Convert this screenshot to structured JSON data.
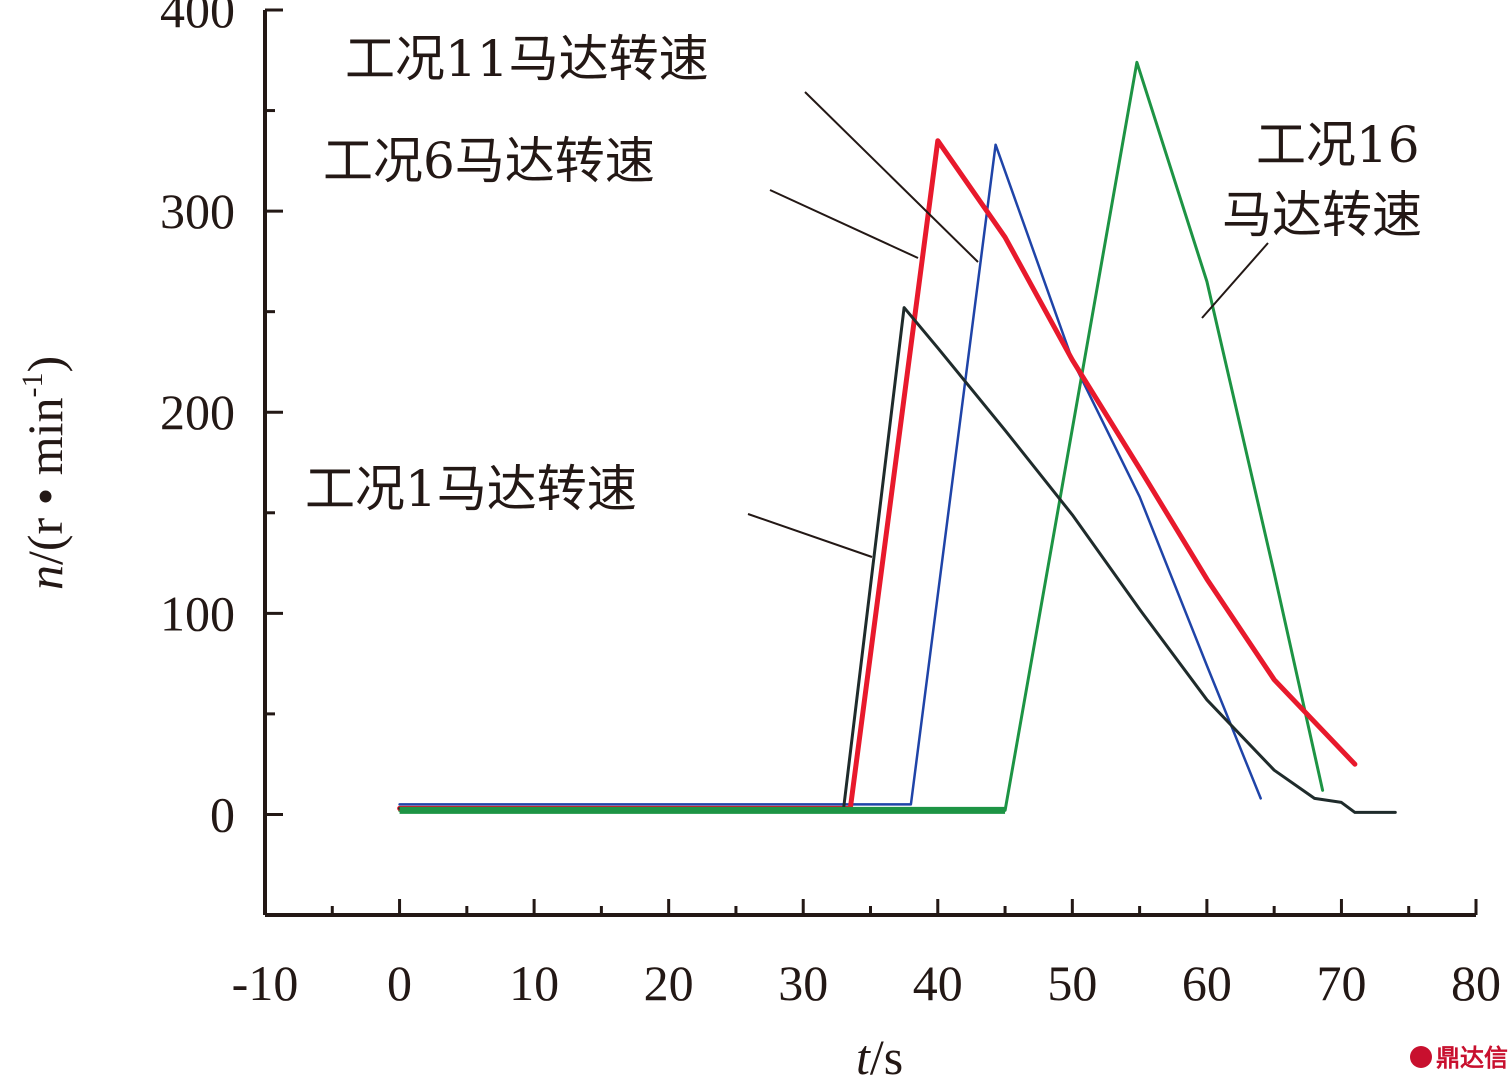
{
  "chart_data": {
    "type": "line",
    "title": "",
    "xlabel": "t/s",
    "ylabel": "n/(r • min-1)",
    "xlim": [
      -10,
      80
    ],
    "ylim": [
      -50,
      400
    ],
    "x_ticks": [
      "-10",
      "0",
      "10",
      "20",
      "30",
      "40",
      "50",
      "60",
      "70",
      "80"
    ],
    "y_ticks": [
      "400",
      "300",
      "200",
      "100",
      "0"
    ],
    "grid": false,
    "series": [
      {
        "name": "工况1马达转速",
        "color": "#1f2b2b",
        "x": [
          0,
          33,
          37.5,
          40,
          45,
          50,
          55,
          60,
          65,
          68,
          70,
          71,
          74
        ],
        "y": [
          3,
          3,
          252,
          232,
          191,
          149,
          102,
          57,
          22,
          8,
          6,
          1,
          1
        ]
      },
      {
        "name": "工况6马达转速",
        "color": "#e8192c",
        "x": [
          0,
          33.5,
          40,
          45,
          50,
          55,
          60,
          65,
          71
        ],
        "y": [
          3,
          3,
          335,
          287,
          226,
          172,
          117,
          67,
          25
        ]
      },
      {
        "name": "工况11马达转速",
        "color": "#1f44a8",
        "x": [
          0,
          38,
          44.3,
          50,
          55,
          60,
          64
        ],
        "y": [
          5,
          5,
          333,
          226,
          158,
          74,
          8
        ]
      },
      {
        "name": "工况16马达转速",
        "color": "#1d9444",
        "x": [
          0,
          45,
          54.8,
          60,
          65,
          68.6
        ],
        "y": [
          2,
          2,
          374,
          265,
          120,
          12
        ]
      }
    ],
    "annotations": [
      {
        "text": "工况11马达转速",
        "series": "工况11马达转速"
      },
      {
        "text": "工况6马达转速",
        "series": "工况6马达转速"
      },
      {
        "text": "工况16",
        "series": "工况16马达转速"
      },
      {
        "text": "马达转速",
        "series": "工况16马达转速"
      },
      {
        "text": "工况1马达转速",
        "series": "工况1马达转速"
      }
    ]
  },
  "labels": {
    "ylabel_main": "n/(r • min",
    "ylabel_sup": "-1",
    "ylabel_close": ")",
    "xlabel": "t/s"
  },
  "watermark": "鼎达信"
}
